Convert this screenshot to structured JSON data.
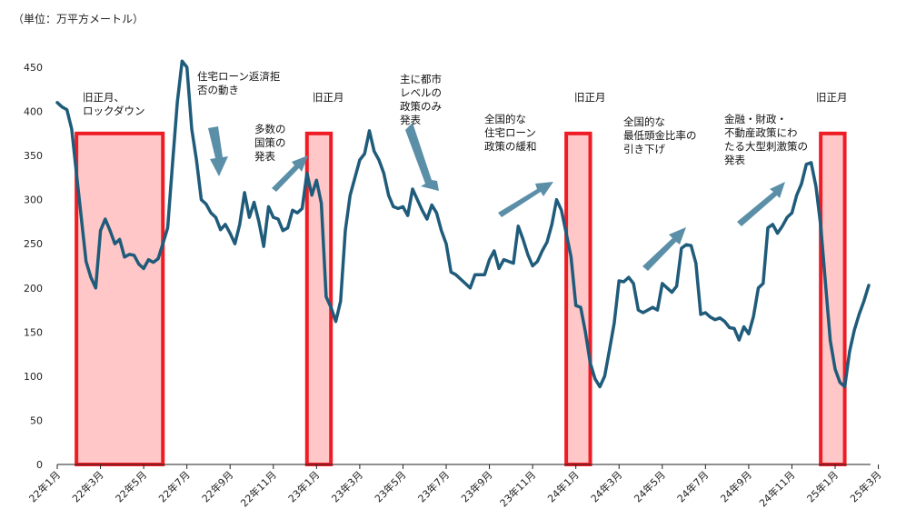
{
  "unit_label": "（単位：万平方メートル）",
  "colors": {
    "line": "#1f5b7a",
    "box_stroke": "#ee1c25",
    "box_fill": "#ffc7c7",
    "arrow": "#5b8fa8",
    "axis": "#222222"
  },
  "annotations": [
    "旧正月、\nロックダウン",
    "住宅ローン返済拒\n否の動き",
    "多数の\n国策の\n発表",
    "旧正月",
    "主に都市\nレベルの\n政策のみ\n発表",
    "全国的な\n住宅ローン\n政策の緩和",
    "旧正月",
    "全国的な\n最低頭金比率の\n引き下げ",
    "金融・財政・\n不動産政策にわ\nたる大型刺激策の\n発表",
    "旧正月"
  ],
  "chart_data": {
    "type": "line",
    "ylim": [
      0,
      450
    ],
    "y_ticks": [
      0,
      50,
      100,
      150,
      200,
      250,
      300,
      350,
      400,
      450
    ],
    "x_ticks": [
      "22年1月",
      "22年3月",
      "22年5月",
      "22年7月",
      "22年9月",
      "22年11月",
      "23年1月",
      "23年3月",
      "23年5月",
      "23年7月",
      "23年9月",
      "23年11月",
      "24年1月",
      "24年3月",
      "24年5月",
      "24年7月",
      "24年9月",
      "24年11月",
      "25年1月",
      "25年3月"
    ],
    "series": [
      {
        "values": [
          410,
          405,
          402,
          380,
          330,
          280,
          230,
          212,
          200,
          265,
          278,
          265,
          250,
          255,
          235,
          238,
          237,
          227,
          222,
          232,
          229,
          233,
          250,
          268,
          340,
          410,
          457,
          450,
          380,
          345,
          300,
          295,
          285,
          280,
          266,
          272,
          262,
          250,
          272,
          308,
          280,
          297,
          275,
          247,
          292,
          280,
          278,
          265,
          268,
          288,
          285,
          290,
          330,
          305,
          322,
          296,
          190,
          178,
          162,
          185,
          265,
          305,
          325,
          345,
          352,
          378,
          355,
          345,
          330,
          305,
          292,
          290,
          292,
          282,
          312,
          300,
          288,
          278,
          294,
          285,
          265,
          250,
          218,
          215,
          210,
          205,
          200,
          215,
          215,
          215,
          232,
          242,
          222,
          232,
          230,
          228,
          270,
          255,
          238,
          225,
          230,
          242,
          252,
          272,
          300,
          288,
          262,
          235,
          180,
          178,
          150,
          115,
          97,
          88,
          100,
          130,
          160,
          208,
          207,
          212,
          205,
          175,
          172,
          175,
          178,
          175,
          205,
          200,
          195,
          202,
          245,
          249,
          248,
          228,
          170,
          172,
          167,
          164,
          166,
          162,
          155,
          154,
          141,
          156,
          148,
          168,
          200,
          205,
          268,
          272,
          262,
          270,
          280,
          285,
          305,
          318,
          340,
          342,
          315,
          270,
          205,
          140,
          108,
          93,
          88,
          128,
          152,
          170,
          185,
          203
        ]
      }
    ],
    "highlight_periods": [
      {
        "label": "旧正月、ロックダウン",
        "from_index": 4,
        "to_index": 22
      },
      {
        "label": "旧正月",
        "from_index": 52,
        "to_index": 57
      },
      {
        "label": "旧正月",
        "from_index": 106,
        "to_index": 111
      },
      {
        "label": "旧正月",
        "from_index": 159,
        "to_index": 164
      }
    ]
  }
}
